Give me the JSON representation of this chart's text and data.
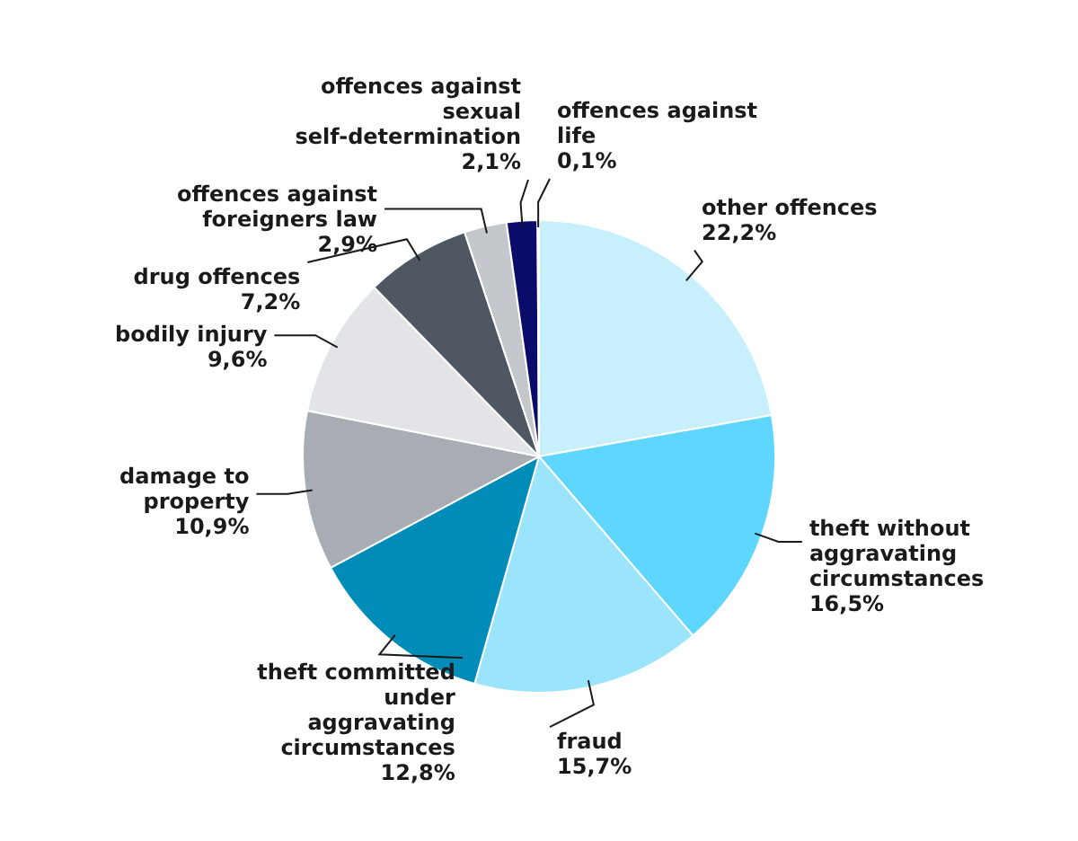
{
  "chart_data": {
    "type": "pie",
    "categories": [
      "other offences",
      "theft without aggravating circumstances",
      "fraud",
      "theft committed under aggravating circumstances",
      "damage to property",
      "bodily injury",
      "drug offences",
      "offences against foreigners law",
      "offences against sexual self-determination",
      "offences against life"
    ],
    "values": [
      22.2,
      16.5,
      15.7,
      12.8,
      10.9,
      9.6,
      7.2,
      2.9,
      2.1,
      0.1
    ],
    "value_labels": [
      "22,2%",
      "16,5%",
      "15,7%",
      "12,8%",
      "10,9%",
      "9,6%",
      "7,2%",
      "2,9%",
      "2,1%",
      "0,1%"
    ],
    "colors": [
      "#c8effc",
      "#5ed6fd",
      "#9ae4fc",
      "#008cb8",
      "#a7adb3",
      "#e3e4e8",
      "#4f5862",
      "#c4c7cb",
      "#0b0b6b",
      "#1a2a8a"
    ],
    "legend": false
  }
}
